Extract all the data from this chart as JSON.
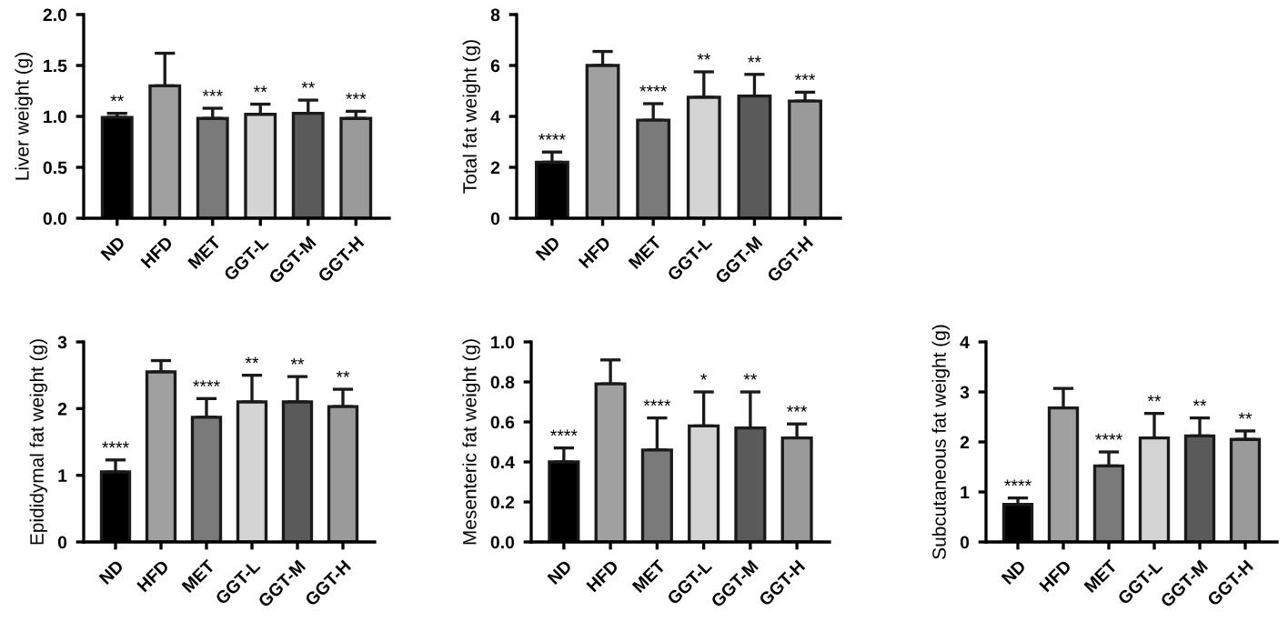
{
  "chart_data": [
    {
      "type": "bar",
      "ylabel": "Liver weight (g)",
      "categories": [
        "ND",
        "HFD",
        "MET",
        "GGT-L",
        "GGT-M",
        "GGT-H"
      ],
      "values": [
        0.99,
        1.3,
        0.98,
        1.02,
        1.03,
        0.98
      ],
      "errors": [
        [
          0.99,
          1.03
        ],
        [
          1.3,
          1.62
        ],
        [
          0.98,
          1.08
        ],
        [
          1.02,
          1.12
        ],
        [
          1.03,
          1.16
        ],
        [
          0.98,
          1.05
        ]
      ],
      "colors": [
        "#000000",
        "#a0a0a0",
        "#7a7a7a",
        "#d4d4d4",
        "#5a5a5a",
        "#9a9a9a"
      ],
      "ylim": [
        0,
        2
      ],
      "yticks": [
        {
          "value": 0,
          "label": "0.0"
        },
        {
          "value": 0.5,
          "label": "0.5"
        },
        {
          "value": 1,
          "label": "1.0"
        },
        {
          "value": 1.5,
          "label": "1.5"
        },
        {
          "value": 2,
          "label": "2.0"
        }
      ],
      "annotations": [
        {
          "text": "**",
          "x": "ND",
          "y": 1.03
        },
        {
          "text": "***",
          "x": "MET",
          "y": 1.08
        },
        {
          "text": "**",
          "x": "GGT-L",
          "y": 1.12
        },
        {
          "text": "**",
          "x": "GGT-M",
          "y": 1.16
        },
        {
          "text": "***",
          "x": "GGT-H",
          "y": 1.05
        }
      ]
    },
    {
      "type": "bar",
      "ylabel": "Total fat weight (g)",
      "categories": [
        "ND",
        "HFD",
        "MET",
        "GGT-L",
        "GGT-M",
        "GGT-H"
      ],
      "values": [
        2.2,
        6.0,
        3.85,
        4.75,
        4.8,
        4.6
      ],
      "errors": [
        [
          2.2,
          2.6
        ],
        [
          6.0,
          6.55
        ],
        [
          3.85,
          4.5
        ],
        [
          4.75,
          5.75
        ],
        [
          4.8,
          5.65
        ],
        [
          4.6,
          4.95
        ]
      ],
      "colors": [
        "#000000",
        "#a0a0a0",
        "#7a7a7a",
        "#d4d4d4",
        "#5a5a5a",
        "#9a9a9a"
      ],
      "ylim": [
        0,
        8
      ],
      "yticks": [
        0,
        2,
        4,
        6,
        8
      ],
      "annotations": [
        {
          "text": "****",
          "x": "ND",
          "y": 2.6
        },
        {
          "text": "****",
          "x": "MET",
          "y": 4.5
        },
        {
          "text": "**",
          "x": "GGT-L",
          "y": 5.75
        },
        {
          "text": "**",
          "x": "GGT-M",
          "y": 5.65
        },
        {
          "text": "***",
          "x": "GGT-H",
          "y": 4.95
        }
      ]
    },
    {
      "type": "bar",
      "ylabel": "Epididymal fat weight (g)",
      "categories": [
        "ND",
        "HFD",
        "MET",
        "GGT-L",
        "GGT-M",
        "GGT-H"
      ],
      "values": [
        1.05,
        2.55,
        1.87,
        2.1,
        2.1,
        2.03
      ],
      "errors": [
        [
          1.05,
          1.23
        ],
        [
          2.55,
          2.72
        ],
        [
          1.87,
          2.15
        ],
        [
          2.1,
          2.5
        ],
        [
          2.1,
          2.48
        ],
        [
          2.03,
          2.29
        ]
      ],
      "colors": [
        "#000000",
        "#a0a0a0",
        "#7a7a7a",
        "#d4d4d4",
        "#5a5a5a",
        "#9a9a9a"
      ],
      "ylim": [
        0,
        3
      ],
      "yticks": [
        0,
        1,
        2,
        3
      ],
      "annotations": [
        {
          "text": "****",
          "x": "ND",
          "y": 1.23
        },
        {
          "text": "****",
          "x": "MET",
          "y": 2.15
        },
        {
          "text": "**",
          "x": "GGT-L",
          "y": 2.5
        },
        {
          "text": "**",
          "x": "GGT-M",
          "y": 2.48
        },
        {
          "text": "**",
          "x": "GGT-H",
          "y": 2.29
        }
      ]
    },
    {
      "type": "bar",
      "ylabel": "Mesenteric fat weight (g)",
      "categories": [
        "ND",
        "HFD",
        "MET",
        "GGT-L",
        "GGT-M",
        "GGT-H"
      ],
      "values": [
        0.4,
        0.79,
        0.46,
        0.58,
        0.57,
        0.52
      ],
      "errors": [
        [
          0.4,
          0.47
        ],
        [
          0.79,
          0.91
        ],
        [
          0.46,
          0.62
        ],
        [
          0.58,
          0.75
        ],
        [
          0.57,
          0.75
        ],
        [
          0.52,
          0.59
        ]
      ],
      "colors": [
        "#000000",
        "#a0a0a0",
        "#7a7a7a",
        "#d4d4d4",
        "#5a5a5a",
        "#9a9a9a"
      ],
      "ylim": [
        0,
        1
      ],
      "yticks": [
        {
          "value": 0,
          "label": "0.0"
        },
        0.2,
        0.4,
        0.6,
        0.8,
        {
          "value": 1,
          "label": "1.0"
        }
      ],
      "annotations": [
        {
          "text": "****",
          "x": "ND",
          "y": 0.47
        },
        {
          "text": "****",
          "x": "MET",
          "y": 0.62
        },
        {
          "text": "*",
          "x": "GGT-L",
          "y": 0.75
        },
        {
          "text": "**",
          "x": "GGT-M",
          "y": 0.75
        },
        {
          "text": "***",
          "x": "GGT-H",
          "y": 0.59
        }
      ]
    },
    {
      "type": "bar",
      "ylabel": "Subcutaneous fat weight (g)",
      "categories": [
        "ND",
        "HFD",
        "MET",
        "GGT-L",
        "GGT-M",
        "GGT-H"
      ],
      "values": [
        0.75,
        2.68,
        1.52,
        2.08,
        2.12,
        2.05
      ],
      "errors": [
        [
          0.75,
          0.88
        ],
        [
          2.68,
          3.07
        ],
        [
          1.52,
          1.8
        ],
        [
          2.08,
          2.57
        ],
        [
          2.12,
          2.48
        ],
        [
          2.05,
          2.22
        ]
      ],
      "colors": [
        "#000000",
        "#a0a0a0",
        "#7a7a7a",
        "#d4d4d4",
        "#5a5a5a",
        "#9a9a9a"
      ],
      "ylim": [
        0,
        4
      ],
      "yticks": [
        0,
        1,
        2,
        3,
        4
      ],
      "annotations": [
        {
          "text": "****",
          "x": "ND",
          "y": 0.88
        },
        {
          "text": "****",
          "x": "MET",
          "y": 1.8
        },
        {
          "text": "**",
          "x": "GGT-L",
          "y": 2.57
        },
        {
          "text": "**",
          "x": "GGT-M",
          "y": 2.48
        },
        {
          "text": "**",
          "x": "GGT-H",
          "y": 2.22
        }
      ]
    }
  ]
}
